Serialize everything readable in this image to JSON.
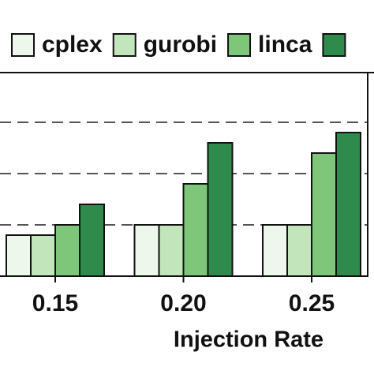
{
  "chart_data": {
    "type": "bar",
    "xlabel": "Injection Rate",
    "categories": [
      "0.15",
      "0.20",
      "0.25"
    ],
    "series": [
      {
        "name": "cplex",
        "color": "#eef7ec",
        "values": [
          0.8,
          1.0,
          1.0
        ]
      },
      {
        "name": "gurobi",
        "color": "#c2e5bb",
        "values": [
          0.8,
          1.0,
          1.0
        ]
      },
      {
        "name": "linca",
        "color": "#7dc67a",
        "values": [
          1.0,
          1.8,
          2.4
        ]
      },
      {
        "color": "#2e8b4c",
        "values": [
          1.4,
          2.6,
          2.8
        ]
      }
    ],
    "ylim": [
      0,
      4
    ],
    "yticks": [
      1,
      2,
      3
    ],
    "grid": true
  }
}
